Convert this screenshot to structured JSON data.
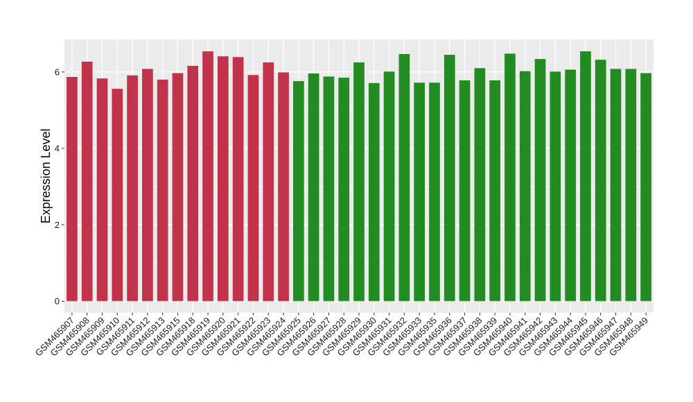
{
  "chart_data": {
    "type": "bar",
    "ylabel": "Expression Level",
    "xlabel": "",
    "ylim": [
      -0.3,
      6.85
    ],
    "yticks": [
      0,
      2,
      4,
      6
    ],
    "grid": true,
    "panel_background": "#ebebeb",
    "grid_color": "#ffffff",
    "group_colors": [
      "#c0334a",
      "#228b22"
    ],
    "categories": [
      "GSM465907",
      "GSM465908",
      "GSM465909",
      "GSM465910",
      "GSM465911",
      "GSM465912",
      "GSM465913",
      "GSM465915",
      "GSM465918",
      "GSM465919",
      "GSM465920",
      "GSM465921",
      "GSM465922",
      "GSM465923",
      "GSM465924",
      "GSM465925",
      "GSM465926",
      "GSM465927",
      "GSM465928",
      "GSM465929",
      "GSM465930",
      "GSM465931",
      "GSM465932",
      "GSM465933",
      "GSM465935",
      "GSM465936",
      "GSM465937",
      "GSM465938",
      "GSM465939",
      "GSM465940",
      "GSM465941",
      "GSM465942",
      "GSM465943",
      "GSM465944",
      "GSM465945",
      "GSM465946",
      "GSM465947",
      "GSM465948",
      "GSM465949"
    ],
    "values": [
      5.87,
      6.27,
      5.83,
      5.56,
      5.91,
      6.08,
      5.8,
      5.97,
      6.16,
      6.54,
      6.41,
      6.39,
      5.92,
      6.25,
      5.99,
      5.76,
      5.96,
      5.88,
      5.85,
      6.25,
      5.71,
      6.01,
      6.47,
      5.72,
      5.72,
      6.45,
      5.78,
      6.1,
      5.78,
      6.48,
      6.02,
      6.34,
      6.01,
      6.06,
      6.54,
      6.32,
      6.08,
      6.08,
      5.97
    ],
    "groups": [
      0,
      0,
      0,
      0,
      0,
      0,
      0,
      0,
      0,
      0,
      0,
      0,
      0,
      0,
      0,
      1,
      1,
      1,
      1,
      1,
      1,
      1,
      1,
      1,
      1,
      1,
      1,
      1,
      1,
      1,
      1,
      1,
      1,
      1,
      1,
      1,
      1,
      1,
      1
    ]
  }
}
